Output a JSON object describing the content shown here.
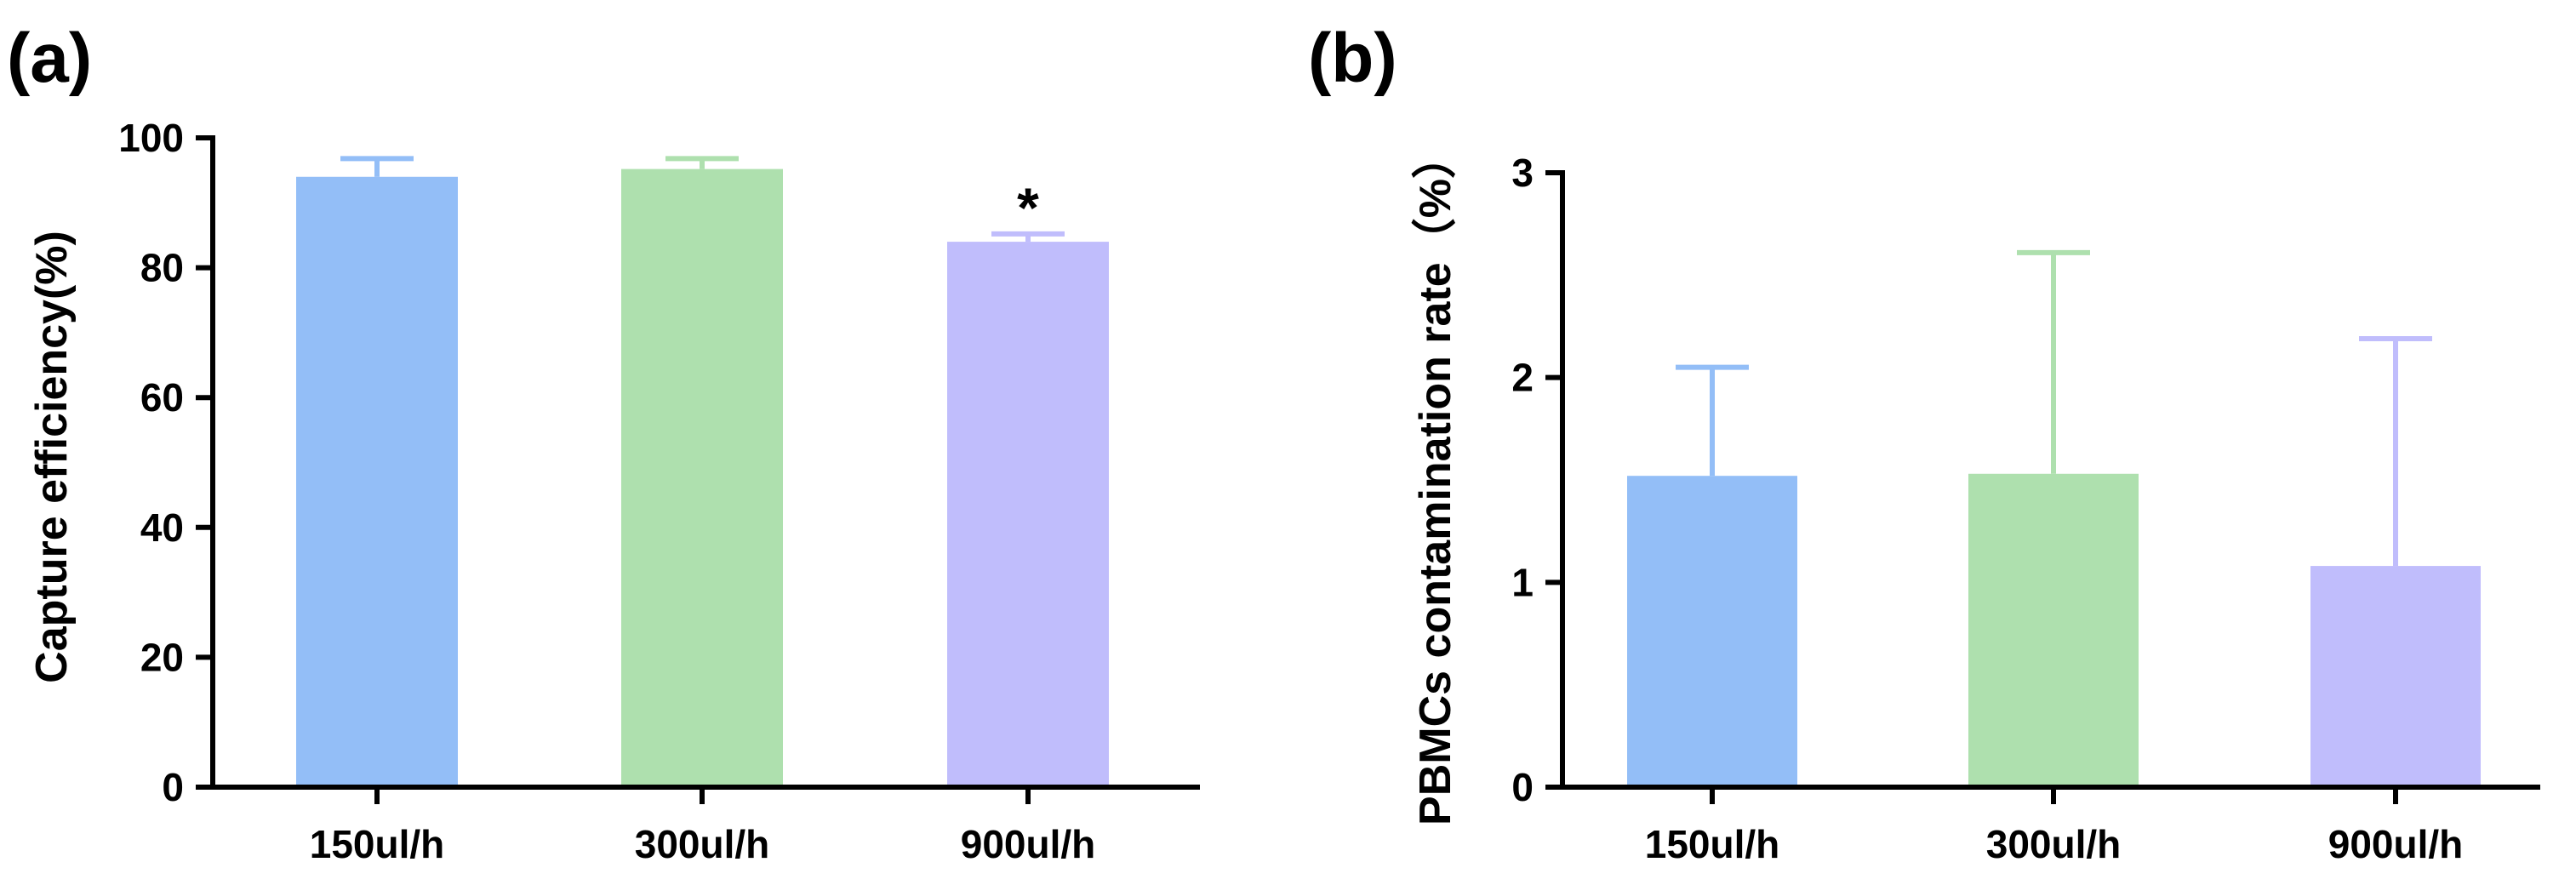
{
  "chart_data": [
    {
      "type": "bar",
      "panel_label": "(a)",
      "title": "",
      "xlabel": "",
      "ylabel": "Capture efficiency(%)",
      "categories": [
        "150ul/h",
        "300ul/h",
        "900ul/h"
      ],
      "values": [
        94,
        95.2,
        84
      ],
      "error_upper": [
        2.8,
        1.6,
        1.2
      ],
      "colors": [
        "#93bef7",
        "#aee0ae",
        "#c0bdfc"
      ],
      "annotations": [
        "",
        "",
        "*"
      ],
      "ylim": [
        0,
        100
      ],
      "yticks": [
        0,
        20,
        40,
        60,
        80,
        100
      ],
      "grid": false
    },
    {
      "type": "bar",
      "panel_label": "(b)",
      "title": "",
      "xlabel": "",
      "ylabel": "PBMCs contamination rate（%）",
      "categories": [
        "150ul/h",
        "300ul/h",
        "900ul/h"
      ],
      "values": [
        1.52,
        1.53,
        1.08
      ],
      "error_upper": [
        0.53,
        1.08,
        1.11
      ],
      "colors": [
        "#93bef7",
        "#aee0ae",
        "#c0bdfc"
      ],
      "annotations": [
        "",
        "",
        ""
      ],
      "ylim": [
        0,
        3
      ],
      "yticks": [
        0,
        1,
        2,
        3
      ],
      "grid": false
    }
  ]
}
